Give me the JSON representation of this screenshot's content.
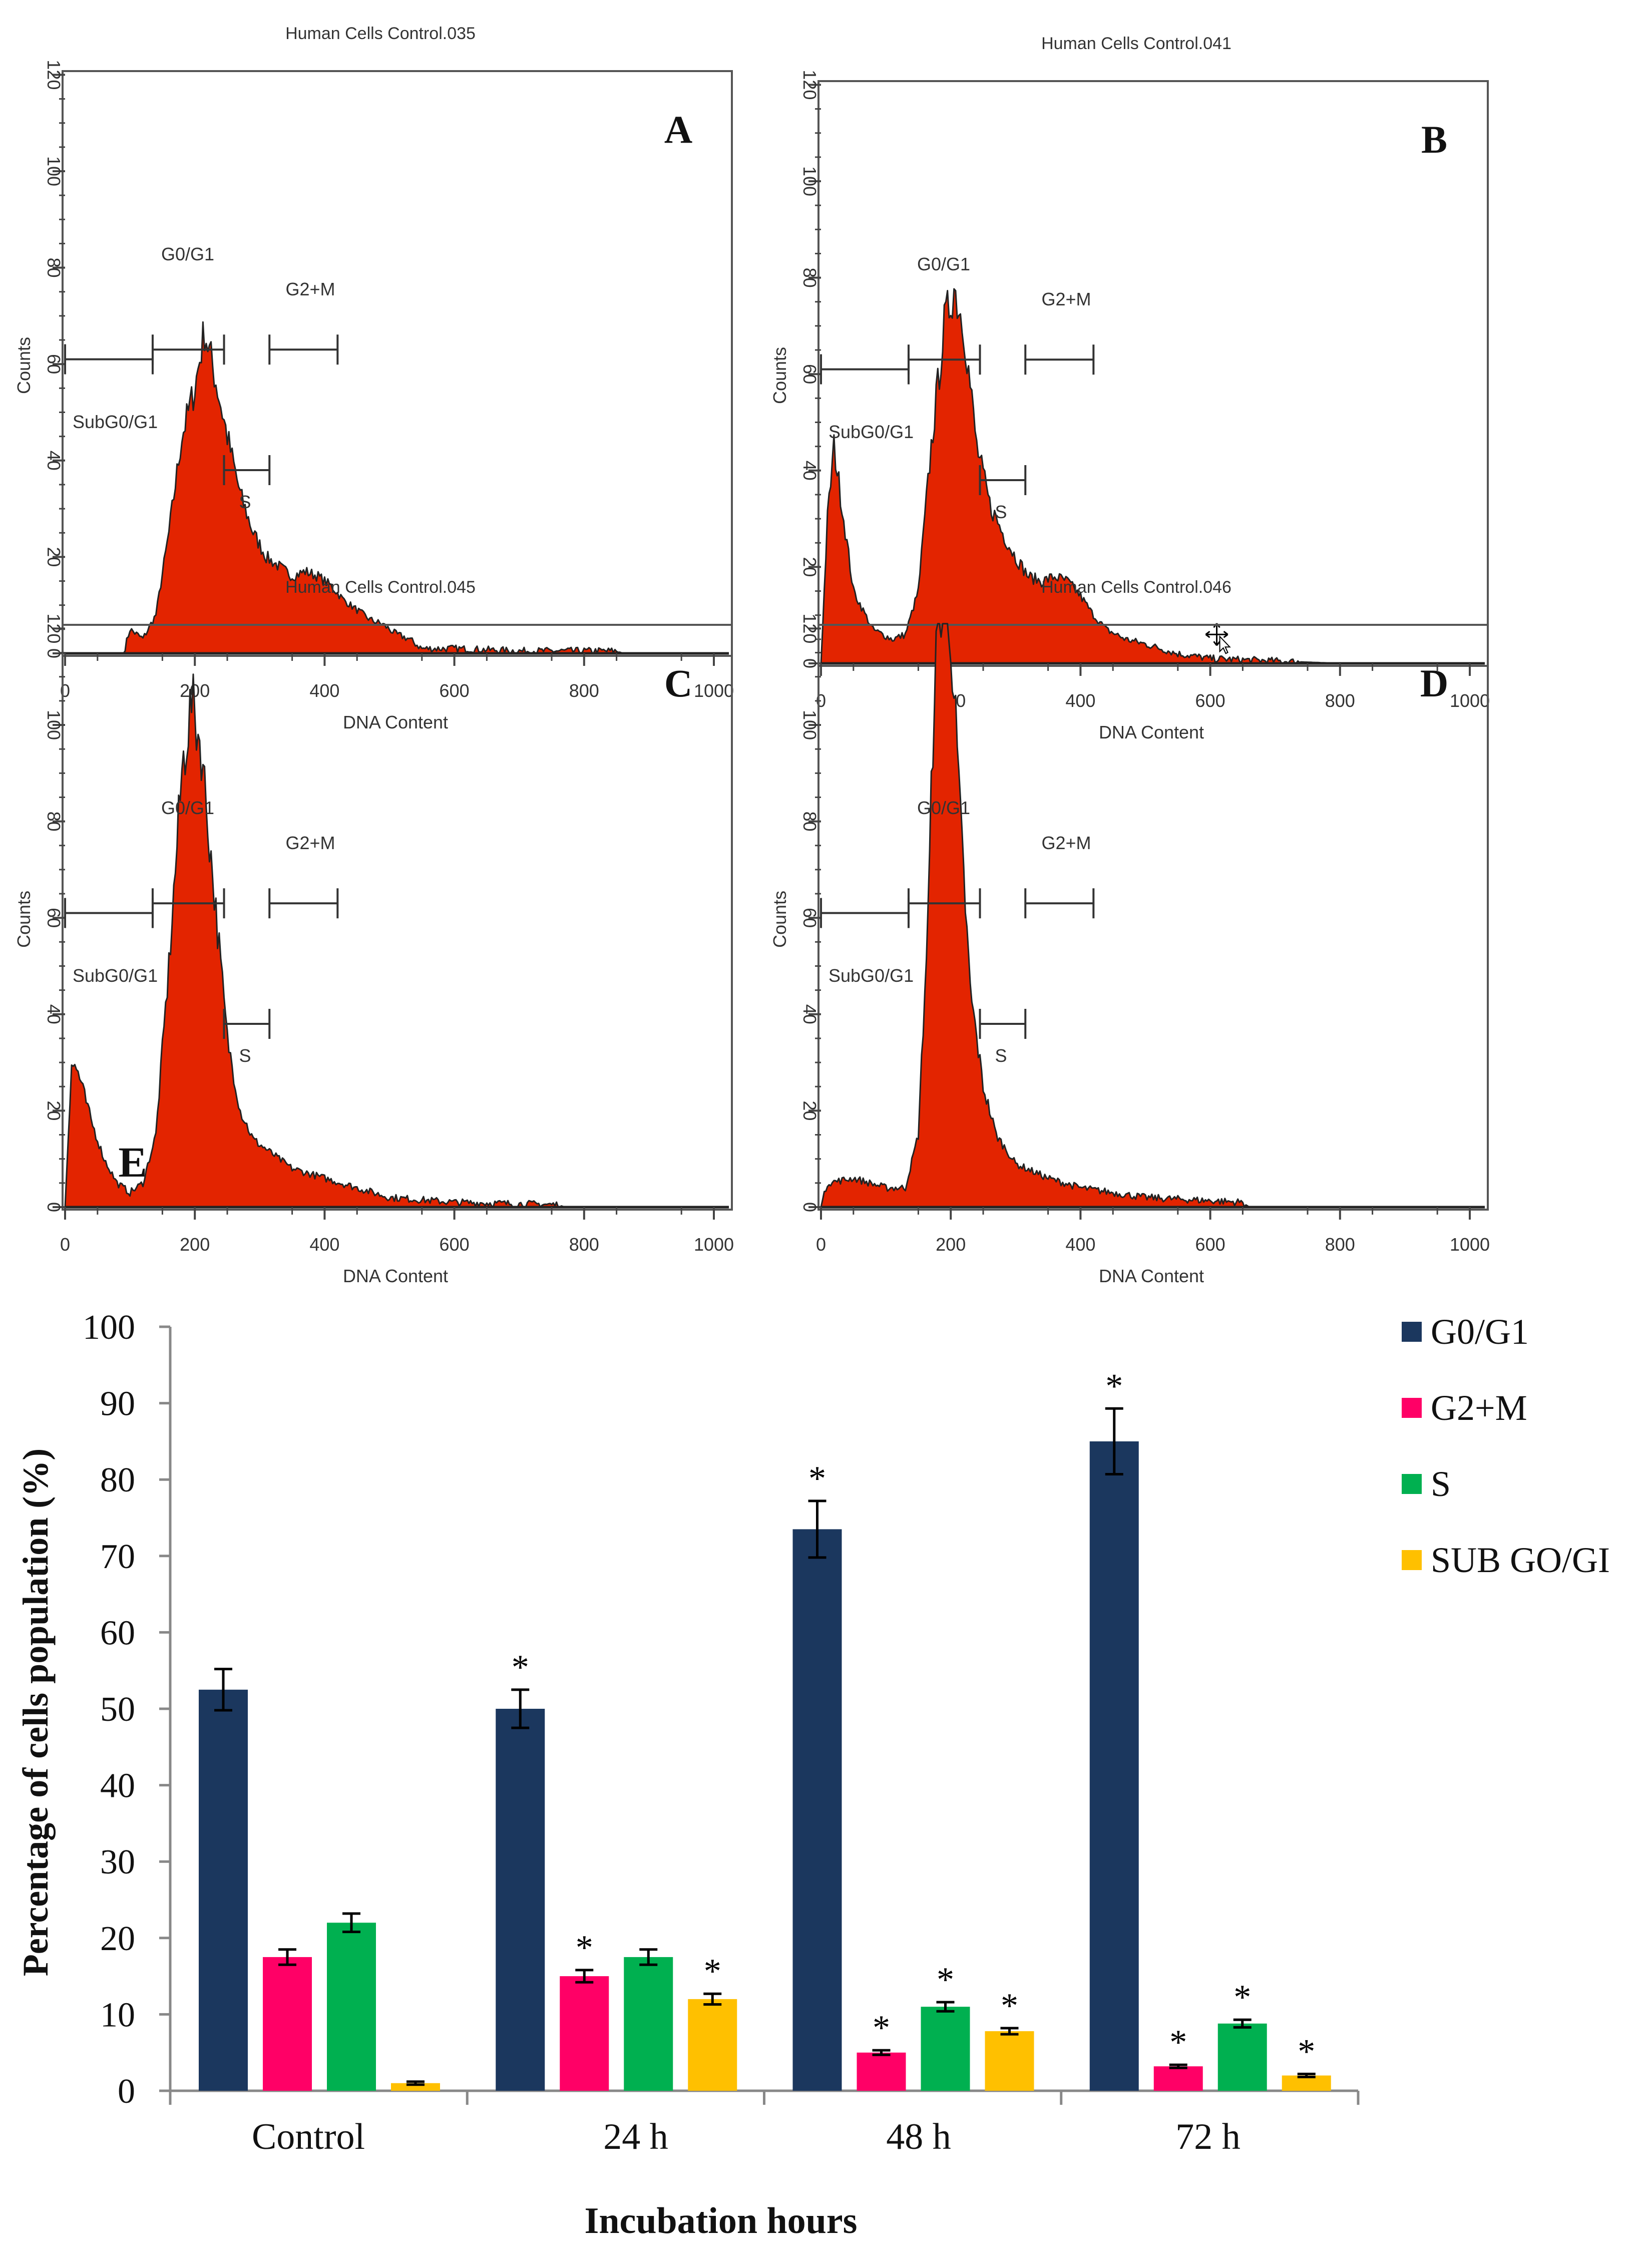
{
  "chart_data": [
    {
      "type": "area",
      "panel_label": "A",
      "title": "Human Cells Control.035",
      "xlabel": "DNA Content",
      "ylabel": "Counts",
      "xlim": [
        0,
        1000
      ],
      "ylim": [
        0,
        120
      ],
      "xticks": [
        "0",
        "200",
        "400",
        "600",
        "800",
        "1000"
      ],
      "yticks": [
        "0",
        "20",
        "40",
        "60",
        "80",
        "100",
        "120"
      ],
      "gates": [
        {
          "label": "SubG0/G1",
          "range": [
            0,
            135
          ],
          "level": 61
        },
        {
          "label": "G0/G1",
          "range": [
            135,
            245
          ],
          "level": 63
        },
        {
          "label": "S",
          "range": [
            245,
            315
          ],
          "level": 38
        },
        {
          "label": "G2+M",
          "range": [
            315,
            420
          ],
          "level": 63
        }
      ],
      "points": [
        [
          0,
          0
        ],
        [
          90,
          0
        ],
        [
          100,
          5
        ],
        [
          120,
          3
        ],
        [
          140,
          8
        ],
        [
          160,
          25
        ],
        [
          180,
          45
        ],
        [
          200,
          55
        ],
        [
          215,
          67
        ],
        [
          230,
          58
        ],
        [
          250,
          45
        ],
        [
          270,
          33
        ],
        [
          290,
          25
        ],
        [
          310,
          20
        ],
        [
          330,
          18
        ],
        [
          350,
          16
        ],
        [
          370,
          17
        ],
        [
          390,
          16
        ],
        [
          410,
          14
        ],
        [
          430,
          11
        ],
        [
          450,
          9
        ],
        [
          470,
          7
        ],
        [
          490,
          6
        ],
        [
          510,
          4
        ],
        [
          530,
          3
        ],
        [
          550,
          1
        ],
        [
          600,
          1
        ],
        [
          700,
          0.5
        ],
        [
          850,
          0.5
        ],
        [
          860,
          0
        ]
      ]
    },
    {
      "type": "area",
      "panel_label": "B",
      "title": "Human Cells Control.041",
      "xlabel": "DNA Content",
      "ylabel": "Counts",
      "xlim": [
        0,
        1000
      ],
      "ylim": [
        0,
        120
      ],
      "xticks": [
        "0",
        "200",
        "400",
        "600",
        "800",
        "1000"
      ],
      "yticks": [
        "0",
        "20",
        "40",
        "60",
        "80",
        "100",
        "120"
      ],
      "gates": [
        {
          "label": "SubG0/G1",
          "range": [
            0,
            135
          ],
          "level": 61
        },
        {
          "label": "G0/G1",
          "range": [
            135,
            245
          ],
          "level": 63
        },
        {
          "label": "S",
          "range": [
            245,
            315
          ],
          "level": 38
        },
        {
          "label": "G2+M",
          "range": [
            315,
            420
          ],
          "level": 63
        }
      ],
      "points": [
        [
          0,
          0
        ],
        [
          10,
          30
        ],
        [
          20,
          45
        ],
        [
          30,
          35
        ],
        [
          50,
          15
        ],
        [
          80,
          7
        ],
        [
          110,
          5
        ],
        [
          130,
          6
        ],
        [
          150,
          15
        ],
        [
          170,
          45
        ],
        [
          190,
          70
        ],
        [
          205,
          78
        ],
        [
          220,
          70
        ],
        [
          240,
          45
        ],
        [
          260,
          33
        ],
        [
          280,
          27
        ],
        [
          300,
          22
        ],
        [
          320,
          18
        ],
        [
          340,
          17
        ],
        [
          360,
          18
        ],
        [
          380,
          17
        ],
        [
          400,
          14
        ],
        [
          420,
          10
        ],
        [
          440,
          7
        ],
        [
          470,
          5
        ],
        [
          500,
          4
        ],
        [
          550,
          2
        ],
        [
          600,
          1
        ],
        [
          700,
          0.5
        ],
        [
          800,
          0
        ]
      ]
    },
    {
      "type": "area",
      "panel_label": "C",
      "title": "Human Cells Control.045",
      "xlabel": "DNA Content",
      "ylabel": "Counts",
      "xlim": [
        0,
        1000
      ],
      "ylim": [
        0,
        120
      ],
      "xticks": [
        "0",
        "200",
        "400",
        "600",
        "800",
        "1000"
      ],
      "yticks": [
        "0",
        "20",
        "40",
        "60",
        "80",
        "100",
        "120"
      ],
      "gates": [
        {
          "label": "SubG0/G1",
          "range": [
            0,
            135
          ],
          "level": 61
        },
        {
          "label": "G0/G1",
          "range": [
            135,
            245
          ],
          "level": 63
        },
        {
          "label": "S",
          "range": [
            245,
            315
          ],
          "level": 38
        },
        {
          "label": "G2+M",
          "range": [
            315,
            420
          ],
          "level": 63
        }
      ],
      "points": [
        [
          0,
          0
        ],
        [
          10,
          30
        ],
        [
          20,
          28
        ],
        [
          40,
          18
        ],
        [
          60,
          10
        ],
        [
          80,
          5
        ],
        [
          100,
          3
        ],
        [
          120,
          5
        ],
        [
          140,
          15
        ],
        [
          160,
          50
        ],
        [
          180,
          90
        ],
        [
          195,
          105
        ],
        [
          210,
          95
        ],
        [
          230,
          65
        ],
        [
          250,
          35
        ],
        [
          270,
          20
        ],
        [
          290,
          14
        ],
        [
          310,
          12
        ],
        [
          350,
          8
        ],
        [
          400,
          6
        ],
        [
          450,
          4
        ],
        [
          500,
          2
        ],
        [
          600,
          1
        ],
        [
          760,
          0.5
        ],
        [
          770,
          0
        ]
      ]
    },
    {
      "type": "area",
      "panel_label": "D",
      "title": "Human Cells Control.046",
      "xlabel": "DNA Content",
      "ylabel": "Counts",
      "xlim": [
        0,
        1000
      ],
      "ylim": [
        0,
        120
      ],
      "xticks": [
        "0",
        "200",
        "400",
        "600",
        "800",
        "1000"
      ],
      "yticks": [
        "0",
        "20",
        "40",
        "60",
        "80",
        "100",
        "120"
      ],
      "gates": [
        {
          "label": "SubG0/G1",
          "range": [
            0,
            135
          ],
          "level": 61
        },
        {
          "label": "G0/G1",
          "range": [
            135,
            245
          ],
          "level": 63
        },
        {
          "label": "S",
          "range": [
            245,
            315
          ],
          "level": 38
        },
        {
          "label": "G2+M",
          "range": [
            315,
            420
          ],
          "level": 63
        }
      ],
      "points": [
        [
          0,
          0
        ],
        [
          10,
          5
        ],
        [
          50,
          6
        ],
        [
          100,
          4
        ],
        [
          130,
          4
        ],
        [
          150,
          15
        ],
        [
          165,
          60
        ],
        [
          175,
          110
        ],
        [
          185,
          125
        ],
        [
          200,
          120
        ],
        [
          215,
          80
        ],
        [
          230,
          45
        ],
        [
          250,
          25
        ],
        [
          270,
          15
        ],
        [
          300,
          9
        ],
        [
          350,
          6
        ],
        [
          400,
          4
        ],
        [
          500,
          2
        ],
        [
          650,
          1
        ],
        [
          660,
          0
        ]
      ]
    },
    {
      "type": "bar",
      "panel_label": "E",
      "title": "",
      "xlabel": "Incubation hours",
      "ylabel": "Percentage of cells population (%)",
      "ylim": [
        0,
        100
      ],
      "yticks": [
        "0",
        "10",
        "20",
        "30",
        "40",
        "50",
        "60",
        "70",
        "80",
        "90",
        "100"
      ],
      "categories": [
        "Control",
        "24 h",
        "48 h",
        "72 h"
      ],
      "legend_position": "top-right",
      "significance_marker": "*",
      "series": [
        {
          "name": "G0/G1",
          "color": "#1b375e",
          "values": [
            52.5,
            50,
            73.5,
            85
          ],
          "errors": [
            2.7,
            2.5,
            3.7,
            4.3
          ],
          "significant": [
            false,
            true,
            true,
            true
          ]
        },
        {
          "name": "G2+M",
          "color": "#ff0066",
          "values": [
            17.5,
            15,
            5,
            3.2
          ],
          "errors": [
            1.0,
            0.8,
            0.3,
            0.2
          ],
          "significant": [
            false,
            true,
            true,
            true
          ]
        },
        {
          "name": "S",
          "color": "#00b050",
          "values": [
            22,
            17.5,
            11,
            8.8
          ],
          "errors": [
            1.2,
            1.0,
            0.6,
            0.5
          ],
          "significant": [
            false,
            false,
            true,
            true
          ]
        },
        {
          "name": "SUB GO/GI",
          "color": "#ffc000",
          "values": [
            1,
            12,
            7.8,
            2
          ],
          "errors": [
            0.2,
            0.7,
            0.4,
            0.2
          ],
          "significant": [
            false,
            true,
            true,
            true
          ]
        }
      ]
    }
  ],
  "colors": {
    "histogram_fill": "#e32400",
    "histogram_line": "#222222"
  }
}
